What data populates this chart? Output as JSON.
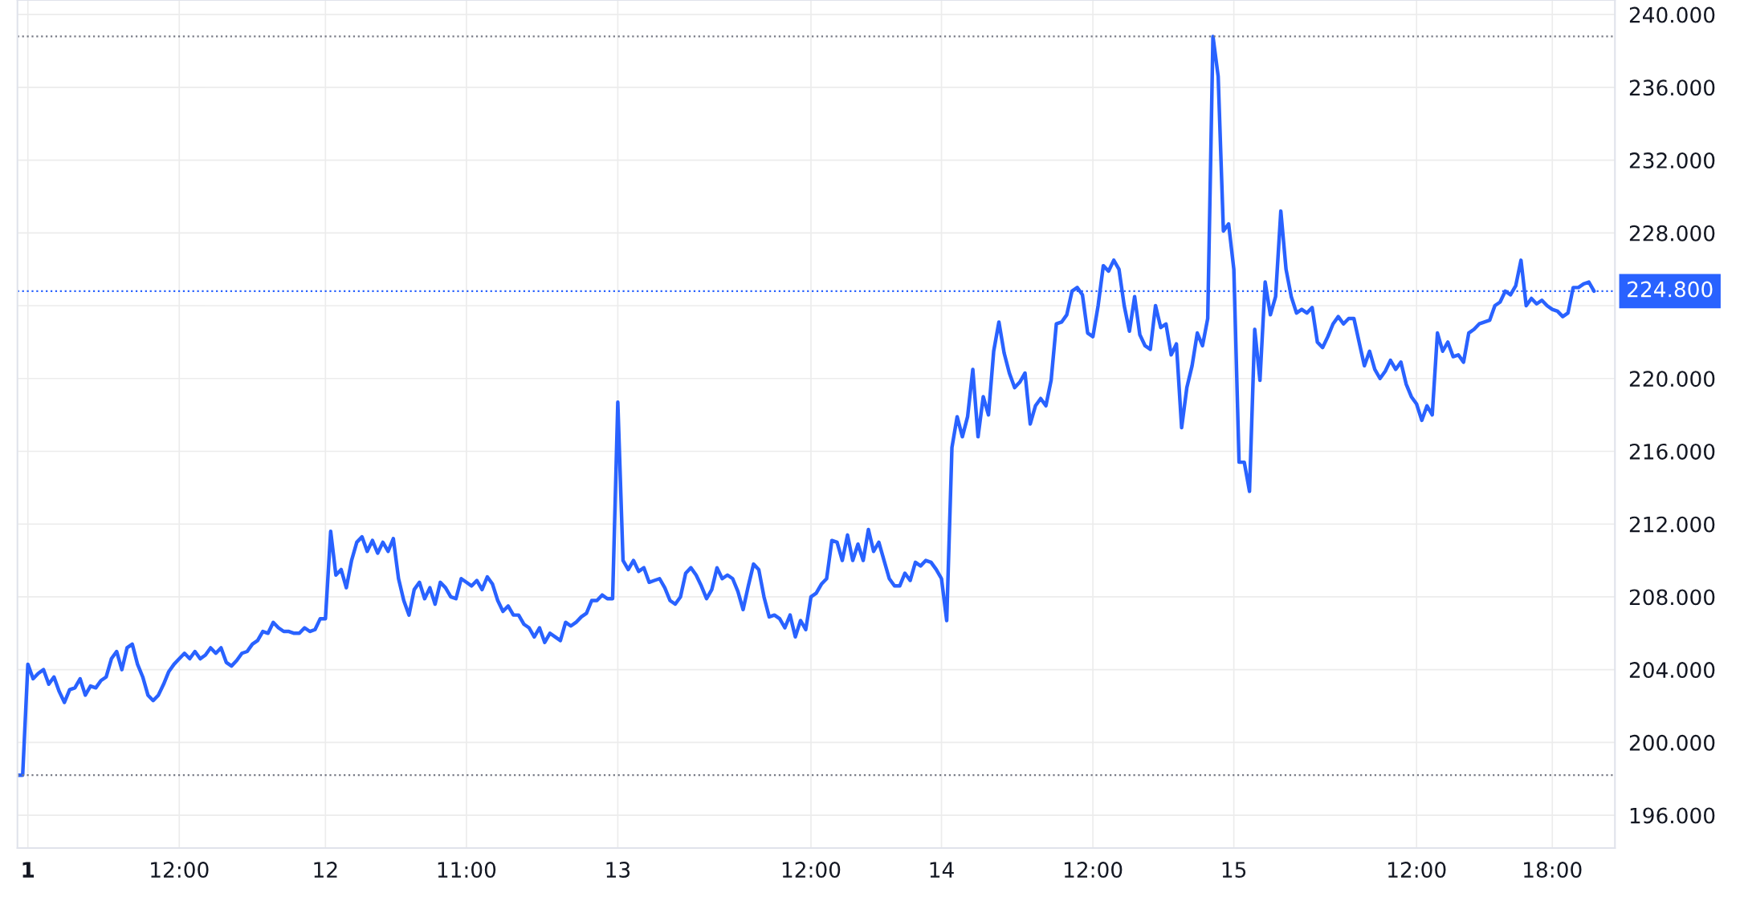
{
  "chart_data": {
    "type": "line",
    "series": [
      {
        "color": "#2962ff",
        "values": [
          198.2,
          198.2,
          204.3,
          203.5,
          203.8,
          204.0,
          203.2,
          203.6,
          202.8,
          202.2,
          202.9,
          203.0,
          203.5,
          202.6,
          203.1,
          203.0,
          203.4,
          203.6,
          204.6,
          205.0,
          204.0,
          205.2,
          205.4,
          204.3,
          203.6,
          202.6,
          202.3,
          202.6,
          203.2,
          203.9,
          204.3,
          204.6,
          204.9,
          204.6,
          205.0,
          204.6,
          204.8,
          205.2,
          204.9,
          205.2,
          204.4,
          204.2,
          204.5,
          204.9,
          205.0,
          205.4,
          205.6,
          206.1,
          206.0,
          206.6,
          206.3,
          206.1,
          206.1,
          206.0,
          206.0,
          206.3,
          206.1,
          206.2,
          206.8,
          206.8,
          211.6,
          209.2,
          209.5,
          208.5,
          210.0,
          211.0,
          211.3,
          210.5,
          211.1,
          210.4,
          211.0,
          210.5,
          211.2,
          209.0,
          207.8,
          207.0,
          208.4,
          208.8,
          207.9,
          208.5,
          207.6,
          208.8,
          208.5,
          208.0,
          207.9,
          209.0,
          208.8,
          208.6,
          208.9,
          208.4,
          209.1,
          208.7,
          207.8,
          207.2,
          207.5,
          207.0,
          207.0,
          206.5,
          206.3,
          205.8,
          206.3,
          205.5,
          206.0,
          205.8,
          205.6,
          206.6,
          206.4,
          206.6,
          206.9,
          207.1,
          207.8,
          207.8,
          208.1,
          207.9,
          207.9,
          218.7,
          210.0,
          209.5,
          210.0,
          209.4,
          209.6,
          208.8,
          208.9,
          209.0,
          208.5,
          207.8,
          207.6,
          208.0,
          209.3,
          209.6,
          209.2,
          208.6,
          207.9,
          208.4,
          209.6,
          209.0,
          209.2,
          209.0,
          208.3,
          207.3,
          208.6,
          209.8,
          209.5,
          208.0,
          206.9,
          207.0,
          206.8,
          206.3,
          207.0,
          205.8,
          206.7,
          206.2,
          208.0,
          208.2,
          208.7,
          209.0,
          211.1,
          211.0,
          210.0,
          211.4,
          210.0,
          210.9,
          210.0,
          211.7,
          210.5,
          211.0,
          210.0,
          209.0,
          208.6,
          208.6,
          209.3,
          208.9,
          209.9,
          209.7,
          210.0,
          209.9,
          209.5,
          209.0,
          206.7,
          216.2,
          217.9,
          216.8,
          217.9,
          220.5,
          216.8,
          219.0,
          218.0,
          221.5,
          223.1,
          221.4,
          220.3,
          219.5,
          219.8,
          220.3,
          217.5,
          218.5,
          218.9,
          218.5,
          219.9,
          223.0,
          223.1,
          223.5,
          224.8,
          225.0,
          224.6,
          222.5,
          222.3,
          224.0,
          226.2,
          225.9,
          226.5,
          226.0,
          224.0,
          222.6,
          224.5,
          222.4,
          221.8,
          221.6,
          224.0,
          222.8,
          223.0,
          221.3,
          221.9,
          217.3,
          219.5,
          220.7,
          222.5,
          221.8,
          223.3,
          238.8,
          236.6,
          228.1,
          228.5,
          226.0,
          215.4,
          215.4,
          213.8,
          222.7,
          219.9,
          225.3,
          223.5,
          224.5,
          229.2,
          226.0,
          224.5,
          223.6,
          223.8,
          223.6,
          223.9,
          222.0,
          221.7,
          222.3,
          223.0,
          223.4,
          223.0,
          223.3,
          223.3,
          222.0,
          220.7,
          221.5,
          220.5,
          220.0,
          220.4,
          221.0,
          220.5,
          220.9,
          219.7,
          219.0,
          218.6,
          217.7,
          218.5,
          218.0,
          222.5,
          221.5,
          222.0,
          221.2,
          221.3,
          220.9,
          222.5,
          222.7,
          223.0,
          223.1,
          223.2,
          224.0,
          224.2,
          224.8,
          224.6,
          225.1,
          226.5,
          224.0,
          224.4,
          224.1,
          224.3,
          224.0,
          223.8,
          223.7,
          223.4,
          223.6,
          225.0,
          225.0,
          225.2,
          225.3,
          224.8
        ]
      }
    ],
    "categories": [
      null,
      null,
      "1",
      null,
      null,
      null,
      null,
      null,
      null,
      null,
      null,
      null,
      null,
      null,
      null,
      null,
      null,
      null,
      null,
      null,
      null,
      null,
      null,
      null,
      null,
      null,
      null,
      null,
      null,
      null,
      null,
      "12:00",
      null,
      null,
      null,
      null,
      null,
      null,
      null,
      null,
      null,
      null,
      null,
      null,
      null,
      null,
      null,
      null,
      null,
      null,
      null,
      null,
      null,
      null,
      null,
      null,
      null,
      null,
      null,
      "12",
      null,
      null,
      null,
      null,
      null,
      null,
      null,
      null,
      null,
      null,
      null,
      null,
      null,
      null,
      null,
      null,
      null,
      null,
      null,
      null,
      null,
      null,
      null,
      null,
      null,
      null,
      "11:00",
      null,
      null,
      null,
      null,
      null,
      null,
      null,
      null,
      null,
      null,
      null,
      null,
      null,
      null,
      null,
      null,
      null,
      null,
      null,
      null,
      null,
      null,
      null,
      null,
      null,
      null,
      null,
      null,
      "13",
      null,
      null,
      null,
      null,
      null,
      null,
      null,
      null,
      null,
      null,
      null,
      null,
      null,
      null,
      null,
      null,
      null,
      null,
      null,
      null,
      null,
      null,
      null,
      null,
      null,
      null,
      null,
      null,
      null,
      null,
      null,
      null,
      null,
      null,
      null,
      null,
      "12:00",
      null,
      null,
      null,
      null,
      null,
      null,
      null,
      null,
      null,
      null,
      null,
      null,
      null,
      null,
      null,
      null,
      null,
      null,
      null,
      null,
      null,
      null,
      null,
      null,
      "14",
      null,
      null,
      null,
      null,
      null,
      null,
      null,
      null,
      null,
      null,
      null,
      null,
      null,
      null,
      null,
      null,
      null,
      null,
      null,
      null,
      null,
      null,
      null,
      null,
      null,
      null,
      null,
      null,
      "12:00",
      null,
      null,
      null,
      null,
      null,
      null,
      null,
      null,
      null,
      null,
      null,
      null,
      null,
      null,
      null,
      null,
      null,
      null,
      null,
      null,
      null,
      null,
      null,
      null,
      null,
      null,
      "15",
      null,
      null,
      null,
      null,
      null,
      null,
      null,
      null,
      null,
      null,
      null,
      null,
      null,
      null,
      null,
      null,
      null,
      null,
      null,
      null,
      null,
      null,
      null,
      null,
      null,
      null,
      null,
      null,
      null,
      null,
      null,
      null,
      null,
      null,
      "12:00",
      null,
      null,
      null,
      null,
      null,
      null,
      null,
      null,
      null,
      null,
      null,
      null,
      null,
      null,
      null,
      null,
      null,
      null,
      null,
      null,
      null,
      null,
      null,
      null,
      null,
      "18:00",
      null,
      null,
      null,
      null,
      null,
      null,
      null,
      null
    ],
    "ylim": [
      194.2,
      240.8
    ],
    "yticks": [
      {
        "value": 196,
        "label": "196.000"
      },
      {
        "value": 200,
        "label": "200.000"
      },
      {
        "value": 204,
        "label": "204.000"
      },
      {
        "value": 208,
        "label": "208.000"
      },
      {
        "value": 212,
        "label": "212.000"
      },
      {
        "value": 216,
        "label": "216.000"
      },
      {
        "value": 220,
        "label": "220.000"
      },
      {
        "value": 224,
        "label": null
      },
      {
        "value": 228,
        "label": "228.000"
      },
      {
        "value": 232,
        "label": "232.000"
      },
      {
        "value": 236,
        "label": "236.000"
      },
      {
        "value": 240,
        "label": "240.000"
      }
    ],
    "ref_lines": [
      {
        "axis": "y",
        "value": 238.8,
        "color": "#787b86",
        "line_style": "dotted"
      },
      {
        "axis": "y",
        "value": 198.2,
        "color": "#787b86",
        "line_style": "dotted"
      },
      {
        "axis": "y",
        "value": 224.8,
        "label": "224.800",
        "color": "#2962ff",
        "line_style": "dotted"
      }
    ],
    "grid": true,
    "legend": false,
    "marker": "none",
    "line_style": "solid"
  }
}
